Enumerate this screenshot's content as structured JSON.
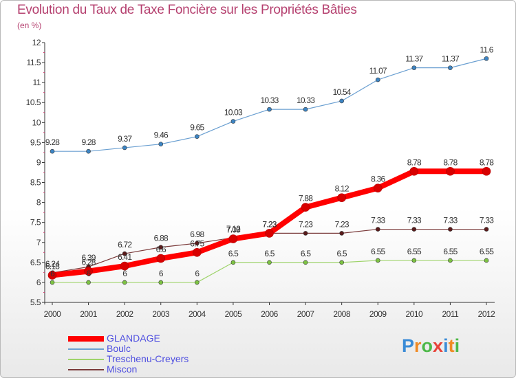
{
  "title": "Evolution du Taux de Taxe Foncière sur les Propriétés Bâties",
  "subtitle": "(en %)",
  "logo": {
    "text": "Proxiti",
    "letters": [
      "P",
      "r",
      "o",
      "x",
      "i",
      "t",
      "i"
    ],
    "colors": [
      "#3a8bd6",
      "#f08a24",
      "#4db848",
      "#e8433a",
      "#3a8bd6",
      "#f08a24",
      "#4db848"
    ]
  },
  "chart_data": {
    "type": "line",
    "title": "Evolution du Taux de Taxe Foncière sur les Propriétés Bâties",
    "ylabel": "(en %)",
    "x": [
      "2000",
      "2001",
      "2002",
      "2003",
      "2004",
      "2005",
      "2006",
      "2007",
      "2008",
      "2009",
      "2010",
      "2011",
      "2012"
    ],
    "ylim": [
      5.5,
      12
    ],
    "yticks": [
      "5.5",
      "6",
      "6.5",
      "7",
      "7.5",
      "8",
      "8.5",
      "9",
      "9.5",
      "10",
      "10.5",
      "11",
      "11.5",
      "12"
    ],
    "grid": false,
    "legend_position": "bottom-left",
    "series": [
      {
        "name": "GLANDAGE",
        "color": "#ff0000",
        "marker": "#d80000",
        "values": [
          6.18,
          6.28,
          6.41,
          6.6,
          6.75,
          7.09,
          7.23,
          7.88,
          8.12,
          8.36,
          8.78,
          8.78,
          8.78
        ],
        "labels": [
          "6.18",
          "6.28",
          "6.41",
          "6.6",
          "6.75",
          "7.09",
          "7.23",
          "7.88",
          "8.12",
          "8.36",
          "8.78",
          "8.78",
          "8.78"
        ]
      },
      {
        "name": "Boulc",
        "color": "#6a9fd1",
        "marker": "#3d85c4",
        "values": [
          9.28,
          9.28,
          9.37,
          9.46,
          9.65,
          10.03,
          10.33,
          10.33,
          10.54,
          11.07,
          11.37,
          11.37,
          11.6
        ],
        "labels": [
          "9.28",
          "9.28",
          "9.37",
          "9.46",
          "9.65",
          "10.03",
          "10.33",
          "10.33",
          "10.54",
          "11.07",
          "11.37",
          "11.37",
          "11.6"
        ]
      },
      {
        "name": "Treschenu-Creyers",
        "color": "#9ed36a",
        "marker": "#7cc242",
        "values": [
          6,
          6,
          6,
          6,
          6,
          6.5,
          6.5,
          6.5,
          6.5,
          6.55,
          6.55,
          6.55,
          6.55
        ],
        "labels": [
          "6",
          "6",
          "6",
          "6",
          "6",
          "6.5",
          "6.5",
          "6.5",
          "6.5",
          "6.55",
          "6.55",
          "6.55",
          "6.55"
        ]
      },
      {
        "name": "Miscon",
        "color": "#7a3a3a",
        "marker": "#5a1a1a",
        "values": [
          6.24,
          6.39,
          6.72,
          6.88,
          6.98,
          7.12,
          7.23,
          7.23,
          7.23,
          7.33,
          7.33,
          7.33,
          7.33
        ],
        "labels": [
          "6.24",
          "6.39",
          "6.72",
          "6.88",
          "6.98",
          "7.12",
          "7.23",
          "7.23",
          "7.23",
          "7.33",
          "7.33",
          "7.33",
          "7.33"
        ]
      }
    ]
  }
}
